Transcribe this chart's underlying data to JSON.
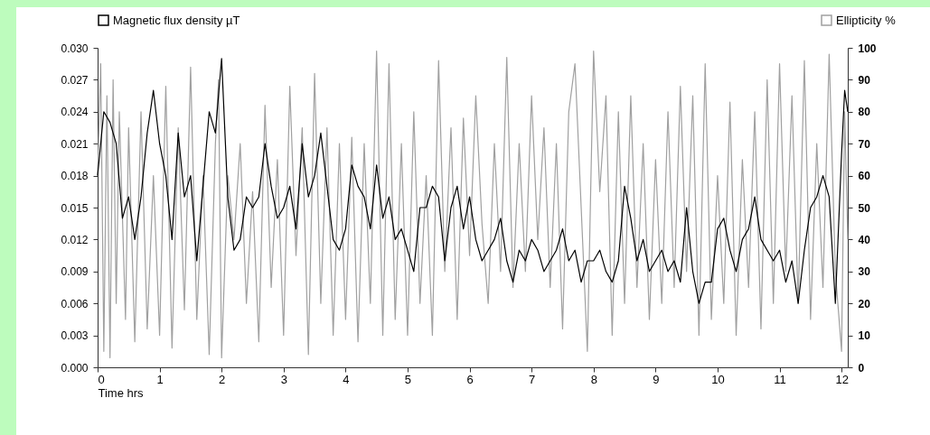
{
  "chart_data": {
    "type": "line",
    "xlabel": "Time hrs",
    "legend": "top",
    "xlim": [
      0,
      12.1
    ],
    "xticks": [
      0,
      1,
      2,
      3,
      4,
      5,
      6,
      7,
      8,
      9,
      10,
      11,
      12
    ],
    "ylim": [
      0,
      0.03
    ],
    "yticks": [
      {
        "value": 0,
        "label": "0.000"
      },
      {
        "value": 0.003,
        "label": "0.003"
      },
      {
        "value": 0.006,
        "label": "0.006"
      },
      {
        "value": 0.009,
        "label": "0.009"
      },
      {
        "value": 0.012,
        "label": "0.012"
      },
      {
        "value": 0.015,
        "label": "0.015"
      },
      {
        "value": 0.018,
        "label": "0.018"
      },
      {
        "value": 0.021,
        "label": "0.021"
      },
      {
        "value": 0.024,
        "label": "0.024"
      },
      {
        "value": 0.027,
        "label": "0.027"
      },
      {
        "value": 0.03,
        "label": "0.030"
      }
    ],
    "y2lim": [
      0,
      100
    ],
    "y2ticks": [
      0,
      10,
      20,
      30,
      40,
      50,
      60,
      70,
      80,
      90,
      100
    ],
    "series": [
      {
        "name": "Magnetic flux density µT",
        "color": "#000000",
        "axis": "y",
        "x": [
          0,
          0.1,
          0.2,
          0.3,
          0.4,
          0.5,
          0.6,
          0.7,
          0.8,
          0.9,
          1,
          1.1,
          1.2,
          1.3,
          1.4,
          1.5,
          1.6,
          1.7,
          1.8,
          1.9,
          2,
          2.1,
          2.2,
          2.3,
          2.4,
          2.5,
          2.6,
          2.7,
          2.8,
          2.9,
          3,
          3.1,
          3.2,
          3.3,
          3.4,
          3.5,
          3.6,
          3.7,
          3.8,
          3.9,
          4,
          4.1,
          4.2,
          4.3,
          4.4,
          4.5,
          4.6,
          4.7,
          4.8,
          4.9,
          5,
          5.1,
          5.2,
          5.3,
          5.4,
          5.5,
          5.6,
          5.7,
          5.8,
          5.9,
          6,
          6.1,
          6.2,
          6.3,
          6.4,
          6.5,
          6.6,
          6.7,
          6.8,
          6.9,
          7,
          7.1,
          7.2,
          7.3,
          7.4,
          7.5,
          7.6,
          7.7,
          7.8,
          7.9,
          8,
          8.1,
          8.2,
          8.3,
          8.4,
          8.5,
          8.6,
          8.7,
          8.8,
          8.9,
          9,
          9.1,
          9.2,
          9.3,
          9.4,
          9.5,
          9.6,
          9.7,
          9.8,
          9.9,
          10,
          10.1,
          10.2,
          10.3,
          10.4,
          10.5,
          10.6,
          10.7,
          10.8,
          10.9,
          11,
          11.1,
          11.2,
          11.3,
          11.4,
          11.5,
          11.6,
          11.7,
          11.8,
          11.9,
          12,
          12.05,
          12.1
        ],
        "values": [
          0.018,
          0.024,
          0.023,
          0.021,
          0.014,
          0.016,
          0.012,
          0.016,
          0.022,
          0.026,
          0.021,
          0.018,
          0.012,
          0.022,
          0.016,
          0.018,
          0.01,
          0.017,
          0.024,
          0.022,
          0.029,
          0.016,
          0.011,
          0.012,
          0.016,
          0.015,
          0.016,
          0.021,
          0.017,
          0.014,
          0.015,
          0.017,
          0.013,
          0.021,
          0.016,
          0.018,
          0.022,
          0.017,
          0.012,
          0.011,
          0.013,
          0.019,
          0.017,
          0.016,
          0.013,
          0.019,
          0.014,
          0.016,
          0.012,
          0.013,
          0.011,
          0.009,
          0.015,
          0.015,
          0.017,
          0.016,
          0.01,
          0.015,
          0.017,
          0.013,
          0.016,
          0.012,
          0.01,
          0.011,
          0.012,
          0.014,
          0.01,
          0.008,
          0.011,
          0.01,
          0.012,
          0.011,
          0.009,
          0.01,
          0.011,
          0.013,
          0.01,
          0.011,
          0.008,
          0.01,
          0.01,
          0.011,
          0.009,
          0.008,
          0.01,
          0.017,
          0.014,
          0.01,
          0.012,
          0.009,
          0.01,
          0.011,
          0.009,
          0.01,
          0.008,
          0.015,
          0.009,
          0.006,
          0.008,
          0.008,
          0.013,
          0.014,
          0.011,
          0.009,
          0.012,
          0.013,
          0.016,
          0.012,
          0.011,
          0.01,
          0.011,
          0.008,
          0.01,
          0.006,
          0.011,
          0.015,
          0.016,
          0.018,
          0.016,
          0.006,
          0.02,
          0.026,
          0.024
        ]
      },
      {
        "name": "Ellipticity %",
        "color": "#a0a0a0",
        "axis": "y2",
        "x": [
          0,
          0.05,
          0.1,
          0.15,
          0.2,
          0.25,
          0.3,
          0.35,
          0.45,
          0.5,
          0.6,
          0.7,
          0.8,
          0.9,
          1,
          1.1,
          1.2,
          1.3,
          1.4,
          1.5,
          1.6,
          1.7,
          1.8,
          1.9,
          1.95,
          2,
          2.1,
          2.2,
          2.3,
          2.4,
          2.5,
          2.6,
          2.7,
          2.8,
          2.9,
          3,
          3.1,
          3.2,
          3.3,
          3.4,
          3.5,
          3.6,
          3.7,
          3.8,
          3.9,
          4,
          4.1,
          4.2,
          4.3,
          4.4,
          4.5,
          4.6,
          4.7,
          4.8,
          4.9,
          5,
          5.1,
          5.2,
          5.3,
          5.4,
          5.5,
          5.6,
          5.7,
          5.8,
          5.9,
          6,
          6.1,
          6.2,
          6.3,
          6.4,
          6.5,
          6.6,
          6.7,
          6.8,
          6.9,
          7,
          7.1,
          7.2,
          7.3,
          7.4,
          7.5,
          7.6,
          7.7,
          7.8,
          7.9,
          8,
          8.1,
          8.2,
          8.3,
          8.4,
          8.5,
          8.6,
          8.7,
          8.8,
          8.9,
          9,
          9.1,
          9.2,
          9.3,
          9.4,
          9.5,
          9.6,
          9.7,
          9.8,
          9.9,
          10,
          10.1,
          10.2,
          10.3,
          10.4,
          10.5,
          10.6,
          10.7,
          10.8,
          10.9,
          11,
          11.1,
          11.2,
          11.3,
          11.4,
          11.5,
          11.6,
          11.7,
          11.8,
          11.9,
          12,
          12.05,
          12.1
        ],
        "values": [
          60,
          95,
          5,
          85,
          3,
          90,
          20,
          80,
          15,
          75,
          8,
          80,
          12,
          60,
          10,
          88,
          6,
          75,
          18,
          94,
          15,
          60,
          4,
          70,
          90,
          3,
          60,
          40,
          70,
          20,
          55,
          8,
          82,
          25,
          65,
          10,
          88,
          35,
          75,
          4,
          92,
          20,
          75,
          10,
          70,
          15,
          72,
          8,
          70,
          20,
          99,
          10,
          95,
          15,
          70,
          10,
          80,
          20,
          60,
          10,
          96,
          30,
          75,
          15,
          78,
          35,
          85,
          45,
          20,
          70,
          30,
          97,
          25,
          70,
          30,
          85,
          40,
          75,
          25,
          70,
          12,
          80,
          95,
          50,
          5,
          99,
          55,
          85,
          10,
          80,
          20,
          85,
          25,
          70,
          15,
          65,
          20,
          80,
          25,
          88,
          30,
          85,
          10,
          95,
          15,
          60,
          20,
          83,
          10,
          65,
          25,
          80,
          12,
          90,
          20,
          95,
          30,
          85,
          20,
          96,
          15,
          70,
          25,
          98,
          30,
          5,
          80,
          40
        ]
      }
    ]
  }
}
